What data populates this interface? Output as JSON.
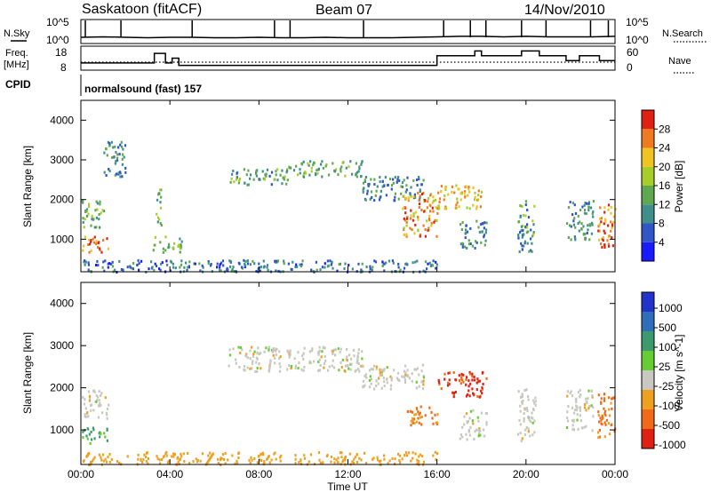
{
  "header": {
    "title": "Saskatoon (fitACF)",
    "beam": "Beam 07",
    "date": "14/Nov/2010"
  },
  "noise_panel": {
    "left_label": "N.Sky",
    "right_label": "N.Search",
    "tick_top": "10^5",
    "tick_bottom": "10^0"
  },
  "freq_panel": {
    "left_label_1": "Freq.",
    "left_label_2": "[MHz]",
    "right_label": "Nave",
    "left_ticks": [
      "18",
      "8"
    ],
    "right_ticks": [
      "60",
      "0"
    ]
  },
  "cpid": {
    "label": "CPID",
    "value": "normalsound (fast) 157"
  },
  "x_axis": {
    "label": "Time UT",
    "ticks": [
      "00:00",
      "04:00",
      "08:00",
      "12:00",
      "16:00",
      "20:00",
      "00:00"
    ]
  },
  "y_axis": {
    "label": "Slant Range [km]",
    "ticks": [
      "1000",
      "2000",
      "3000",
      "4000"
    ]
  },
  "power_scale": {
    "label": "Power [dB]",
    "ticks": [
      "4",
      "8",
      "12",
      "16",
      "20",
      "24",
      "28"
    ],
    "colors": [
      "#1a1aff",
      "#2f55c8",
      "#3f8f8a",
      "#5ea84f",
      "#a8cc2a",
      "#f0c320",
      "#f07a20",
      "#e02010"
    ]
  },
  "velocity_scale": {
    "label": "Velocity [m s^-1]",
    "ticks": [
      "1000",
      "500",
      "100",
      "25",
      "-25",
      "-100",
      "-500",
      "-1000"
    ],
    "colors": [
      "#2233cc",
      "#2f6eb8",
      "#3c9a6e",
      "#66cc33",
      "#c8c8c0",
      "#f0a020",
      "#f06a18",
      "#e02010"
    ]
  },
  "chart_data": {
    "type": "heatmap",
    "x_range_hours": [
      0,
      24
    ],
    "y_range_km": [
      180,
      4500
    ],
    "noise_level_log10": {
      "x": [
        0,
        1,
        2,
        3,
        4,
        5,
        6,
        7,
        8,
        9,
        10,
        11,
        12,
        13,
        14,
        15,
        16,
        17,
        18,
        19,
        20,
        21,
        22,
        23,
        24
      ],
      "y": [
        1.3,
        1.4,
        1.3,
        1.2,
        1.3,
        1.3,
        1.2,
        1.2,
        1.3,
        1.2,
        1.2,
        1.3,
        1.2,
        1.2,
        1.2,
        1.3,
        1.4,
        1.5,
        1.5,
        1.4,
        1.5,
        1.4,
        1.4,
        1.4,
        1.5
      ]
    },
    "frequency_mhz": {
      "x": [
        0,
        3.3,
        3.3,
        3.8,
        3.8,
        4.1,
        4.1,
        4.4,
        4.4,
        16.0,
        16.0,
        17.7,
        17.7,
        18.0,
        18.0,
        19.8,
        19.8,
        20.6,
        20.6,
        21.8,
        21.8,
        22.4,
        22.4,
        23.3,
        23.3,
        24.0
      ],
      "y": [
        11,
        11,
        15,
        15,
        11,
        11,
        13,
        13,
        10,
        10,
        14,
        14,
        16,
        16,
        14,
        14,
        16,
        16,
        14,
        14,
        12,
        12,
        14,
        14,
        12,
        12
      ]
    },
    "nave": 20,
    "power_regions": [
      {
        "t": [
          0,
          1.2
        ],
        "r": [
          700,
          1100
        ],
        "db": 26
      },
      {
        "t": [
          0,
          1.0
        ],
        "r": [
          1300,
          2000
        ],
        "db": 14
      },
      {
        "t": [
          1.0,
          2.0
        ],
        "r": [
          2600,
          3500
        ],
        "db": 10
      },
      {
        "t": [
          3.3,
          3.6
        ],
        "r": [
          1300,
          2300
        ],
        "db": 14
      },
      {
        "t": [
          3.2,
          4.6
        ],
        "r": [
          700,
          1100
        ],
        "db": 14
      },
      {
        "t": [
          6.6,
          9.4
        ],
        "r": [
          2400,
          2800
        ],
        "db": 12
      },
      {
        "t": [
          9.2,
          12.6
        ],
        "r": [
          2600,
          3000
        ],
        "db": 14
      },
      {
        "t": [
          12.6,
          15.4
        ],
        "r": [
          2000,
          2600
        ],
        "db": 10
      },
      {
        "t": [
          14.4,
          16.0
        ],
        "r": [
          1100,
          2200
        ],
        "db": 24
      },
      {
        "t": [
          16.0,
          18.0
        ],
        "r": [
          1800,
          2400
        ],
        "db": 22
      },
      {
        "t": [
          17.0,
          18.2
        ],
        "r": [
          800,
          1500
        ],
        "db": 10
      },
      {
        "t": [
          19.6,
          20.4
        ],
        "r": [
          700,
          2000
        ],
        "db": 12
      },
      {
        "t": [
          21.8,
          23.0
        ],
        "r": [
          1000,
          2000
        ],
        "db": 10
      },
      {
        "t": [
          23.2,
          24.0
        ],
        "r": [
          800,
          1900
        ],
        "db": 26
      },
      {
        "t": [
          0,
          16.0
        ],
        "r": [
          200,
          500
        ],
        "db": 8
      }
    ],
    "velocity_regions": [
      {
        "t": [
          0,
          1.2
        ],
        "r": [
          700,
          1100
        ],
        "v": 120
      },
      {
        "t": [
          0,
          1.2
        ],
        "r": [
          1300,
          2000
        ],
        "v": 0
      },
      {
        "t": [
          6.6,
          12.6
        ],
        "r": [
          2400,
          3000
        ],
        "v": 0
      },
      {
        "t": [
          12.6,
          15.4
        ],
        "r": [
          2000,
          2600
        ],
        "v": 0
      },
      {
        "t": [
          14.6,
          16.0
        ],
        "r": [
          1100,
          1600
        ],
        "v": -120
      },
      {
        "t": [
          16.0,
          18.2
        ],
        "r": [
          1800,
          2400
        ],
        "v": -600
      },
      {
        "t": [
          17.0,
          18.2
        ],
        "r": [
          800,
          1500
        ],
        "v": 0
      },
      {
        "t": [
          19.6,
          20.4
        ],
        "r": [
          700,
          2000
        ],
        "v": 0
      },
      {
        "t": [
          21.8,
          23.0
        ],
        "r": [
          1000,
          2000
        ],
        "v": 0
      },
      {
        "t": [
          23.2,
          24.0
        ],
        "r": [
          800,
          1900
        ],
        "v": -150
      },
      {
        "t": [
          0,
          16.0
        ],
        "r": [
          200,
          500
        ],
        "v": -60
      }
    ]
  }
}
